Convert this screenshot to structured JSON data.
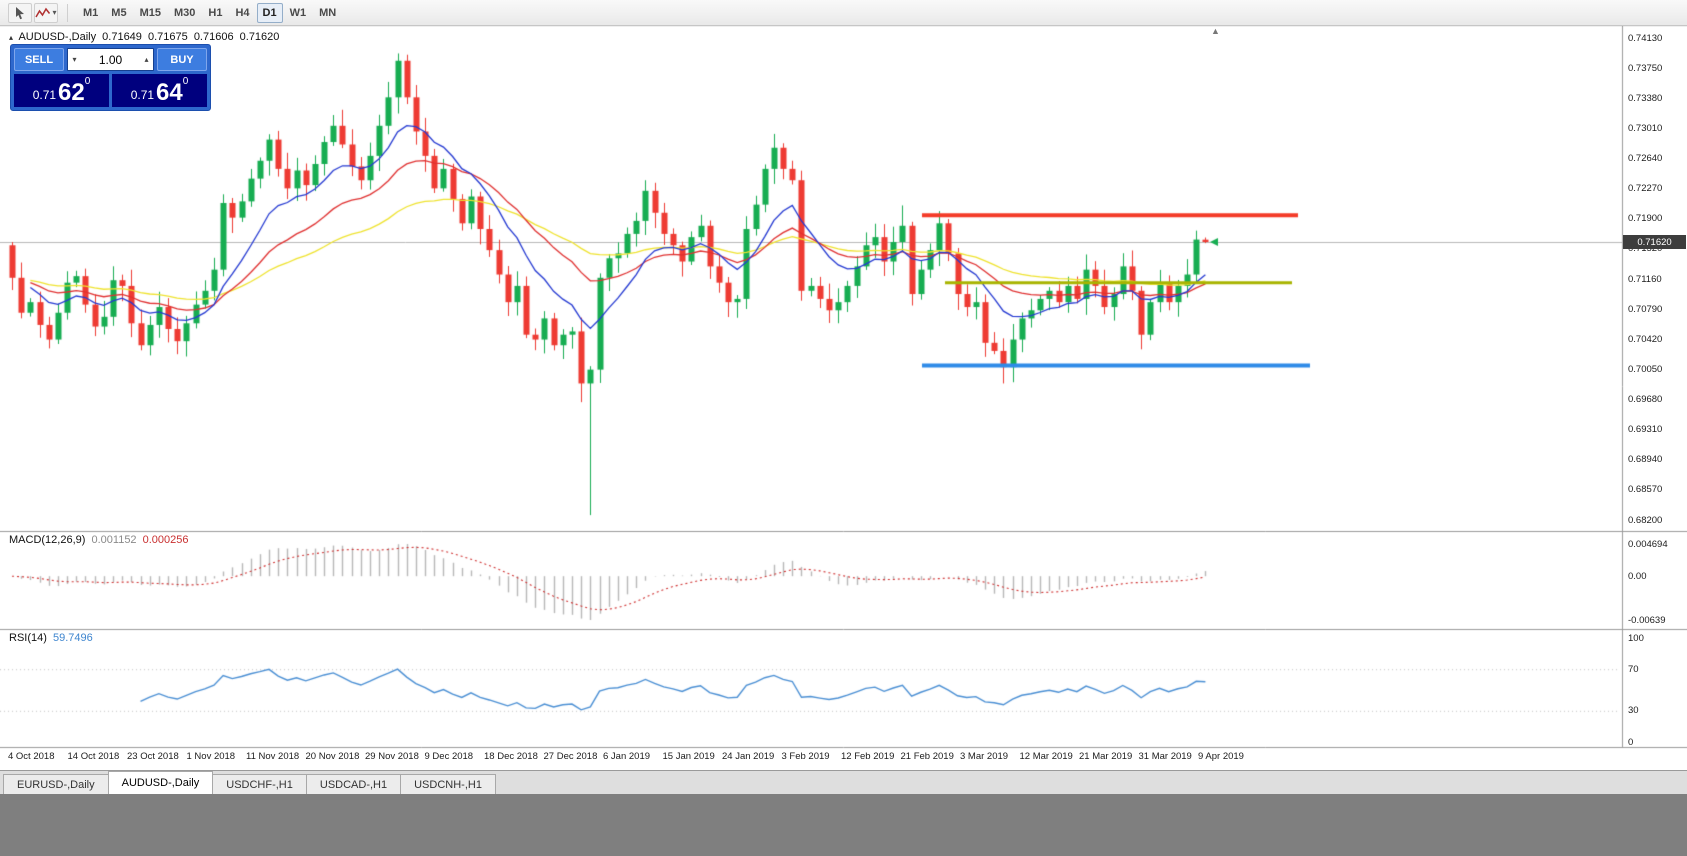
{
  "icons": {
    "dropdown": "▾",
    "spin_up": "▴",
    "spin_down": "▾",
    "chart_symbol": "▴",
    "shift_marker": "▲"
  },
  "toolbar": {
    "timeframes": [
      "M1",
      "M5",
      "M15",
      "M30",
      "H1",
      "H4",
      "D1",
      "W1",
      "MN"
    ],
    "active_timeframe": "D1"
  },
  "chart": {
    "title": "AUDUSD-,Daily",
    "ohlc": {
      "open": "0.71649",
      "high": "0.71675",
      "low": "0.71606",
      "close": "0.71620"
    },
    "current_price": "0.71620",
    "price_axis": [
      "0.74130",
      "0.73750",
      "0.73380",
      "0.73010",
      "0.72640",
      "0.72270",
      "0.71900",
      "0.71520",
      "0.71160",
      "0.70790",
      "0.70420",
      "0.70050",
      "0.69680",
      "0.69310",
      "0.68940",
      "0.68570",
      "0.68200"
    ],
    "date_axis": [
      "4 Oct 2018",
      "14 Oct 2018",
      "23 Oct 2018",
      "1 Nov 2018",
      "11 Nov 2018",
      "20 Nov 2018",
      "29 Nov 2018",
      "9 Dec 2018",
      "18 Dec 2018",
      "27 Dec 2018",
      "6 Jan 2019",
      "15 Jan 2019",
      "24 Jan 2019",
      "3 Feb 2019",
      "12 Feb 2019",
      "21 Feb 2019",
      "3 Mar 2019",
      "12 Mar 2019",
      "21 Mar 2019",
      "31 Mar 2019",
      "9 Apr 2019"
    ],
    "first_open": 0.7158,
    "candles_close": [
      0.7118,
      0.7075,
      0.7088,
      0.706,
      0.7042,
      0.7075,
      0.7112,
      0.712,
      0.7085,
      0.7058,
      0.707,
      0.7115,
      0.7108,
      0.7062,
      0.7035,
      0.706,
      0.7082,
      0.7055,
      0.704,
      0.7062,
      0.7085,
      0.7102,
      0.7128,
      0.721,
      0.7192,
      0.7212,
      0.724,
      0.7262,
      0.7288,
      0.7252,
      0.7228,
      0.725,
      0.7232,
      0.7258,
      0.7285,
      0.7305,
      0.7282,
      0.7255,
      0.7238,
      0.7268,
      0.7305,
      0.734,
      0.7385,
      0.734,
      0.7298,
      0.7268,
      0.7228,
      0.7252,
      0.7215,
      0.7185,
      0.7218,
      0.7178,
      0.7152,
      0.7122,
      0.7088,
      0.7108,
      0.7048,
      0.7042,
      0.7068,
      0.7035,
      0.7048,
      0.7052,
      0.6988,
      0.7005,
      0.7118,
      0.7142,
      0.7148,
      0.7172,
      0.7188,
      0.7225,
      0.7198,
      0.7172,
      0.7158,
      0.7138,
      0.7168,
      0.7182,
      0.7132,
      0.7112,
      0.7088,
      0.7092,
      0.7178,
      0.7208,
      0.7252,
      0.7278,
      0.7252,
      0.7238,
      0.7102,
      0.7108,
      0.7092,
      0.7078,
      0.7088,
      0.7108,
      0.7132,
      0.7158,
      0.7168,
      0.7138,
      0.7162,
      0.7182,
      0.7098,
      0.7128,
      0.7152,
      0.7185,
      0.7148,
      0.7098,
      0.7082,
      0.7088,
      0.7038,
      0.7028,
      0.7008,
      0.7042,
      0.7068,
      0.7078,
      0.7092,
      0.7102,
      0.7088,
      0.7108,
      0.7092,
      0.7128,
      0.7108,
      0.7082,
      0.7098,
      0.7132,
      0.7102,
      0.7048,
      0.7088,
      0.7112,
      0.7088,
      0.7108,
      0.7122,
      0.7165,
      0.7162
    ],
    "last_candle": [
      0.71649,
      0.71675,
      0.71606,
      0.7162
    ],
    "high_overrides": {
      "42": 0.7394,
      "69": 0.7238,
      "83": 0.7295,
      "97": 0.7207,
      "101": 0.72,
      "129": 0.7176
    },
    "low_overrides": {
      "62": 0.6965,
      "63": 0.6826,
      "108": 0.6988,
      "123": 0.703
    },
    "levels": {
      "resistance": 0.7195,
      "middle": 0.7112,
      "support": 0.701
    },
    "colors": {
      "up": "#17ad52",
      "down": "#ee3b33",
      "ma_fast": "#2439d2",
      "ma_mid": "#e03030",
      "ma_slow": "#efe32e",
      "resistance": "#f43b28",
      "middle": "#a8b400",
      "support": "#2f8be8",
      "macd_hist": "#b8b8b8",
      "macd_signal": "#d03030",
      "rsi": "#4a8fd4",
      "price_line": "#b8b8b8"
    }
  },
  "macd": {
    "name": "MACD(12,26,9)",
    "value_main": "0.001152",
    "value_signal": "0.000256",
    "axis": [
      "0.004694",
      "0.00",
      "-0.00639"
    ]
  },
  "rsi": {
    "name": "RSI(14)",
    "value": "59.7496",
    "axis": [
      100,
      70,
      30,
      0
    ],
    "levels": [
      70,
      30
    ]
  },
  "trade_panel": {
    "sell_label": "SELL",
    "buy_label": "BUY",
    "volume": "1.00",
    "sell_price": {
      "big": "0.71",
      "pips": "62",
      "sub": "0"
    },
    "buy_price": {
      "big": "0.71",
      "pips": "64",
      "sub": "0"
    }
  },
  "tabs": [
    {
      "label": "EURUSD-,Daily",
      "active": false
    },
    {
      "label": "AUDUSD-,Daily",
      "active": true
    },
    {
      "label": "USDCHF-,H1",
      "active": false
    },
    {
      "label": "USDCAD-,H1",
      "active": false
    },
    {
      "label": "USDCNH-,H1",
      "active": false
    }
  ]
}
